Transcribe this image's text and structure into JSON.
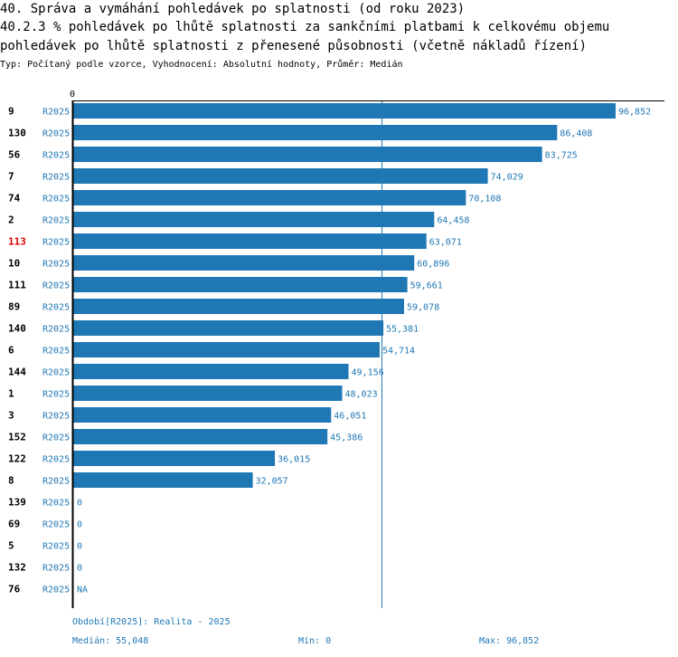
{
  "header": {
    "title_line1": "40. Správa a vymáhání pohledávek po splatnosti (od roku 2023)",
    "title_line2": "40.2.3 % pohledávek po lhůtě splatnosti za sankčními platbami k celkovému objemu",
    "title_line3": "pohledávek po lhůtě splatnosti z přenesené působnosti (včetně nákladů řízení)",
    "subtitle": "Typ: Počítaný podle vzorce, Vyhodnocení: Absolutní hodnoty, Průměr: Medián"
  },
  "chart_data": {
    "type": "bar",
    "orientation": "horizontal",
    "axis_top_label": "0",
    "xlim": [
      0,
      96852
    ],
    "median": 55048,
    "series_label": "R2025",
    "categories": [
      "9",
      "130",
      "56",
      "7",
      "74",
      "2",
      "113",
      "10",
      "111",
      "89",
      "140",
      "6",
      "144",
      "1",
      "3",
      "152",
      "122",
      "8",
      "139",
      "69",
      "5",
      "132",
      "76"
    ],
    "values": [
      96852,
      86408,
      83725,
      74029,
      70108,
      64458,
      63071,
      60896,
      59661,
      59078,
      55381,
      54714,
      49156,
      48023,
      46051,
      45386,
      36015,
      32057,
      0,
      0,
      0,
      0,
      null
    ],
    "value_labels": [
      "96,852",
      "86,408",
      "83,725",
      "74,029",
      "70,108",
      "64,458",
      "63,071",
      "60,896",
      "59,661",
      "59,078",
      "55,381",
      "54,714",
      "49,156",
      "48,023",
      "46,051",
      "45,386",
      "36,015",
      "32,057",
      "0",
      "0",
      "0",
      "0",
      "NA"
    ],
    "highlight_category": "113",
    "colors": {
      "bar": "#1f77b4",
      "label": "#1f77b4",
      "highlight": "#dd0000",
      "axis": "#000000",
      "median_line": "#1f77b4"
    }
  },
  "footer": {
    "period": "Období[R2025]: Realita - 2025",
    "median": "Medián: 55,048",
    "min": "Min: 0",
    "max": "Max: 96,852"
  }
}
